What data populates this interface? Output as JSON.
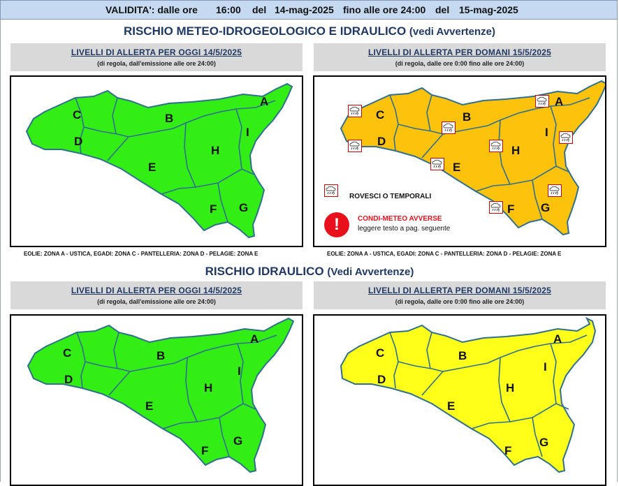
{
  "validity": {
    "label": "VALIDITA': dalle ore",
    "from_time": "16:00",
    "del1": "del",
    "from_date": "14-mag-2025",
    "until_label": "fino alle ore 24:00",
    "del2": "del",
    "to_date": "15-mag-2025"
  },
  "section1": {
    "title": "RISCHIO METEO-IDROGEOLOGICO E IDRAULICO",
    "subtitle": "(vedi Avvertenze)"
  },
  "section2": {
    "title": "RISCHIO IDRAULICO",
    "subtitle": "(Vedi Avvertenze)"
  },
  "panels": [
    {
      "heading": "LIVELLI DI ALLERTA PER OGGI 14/5/2025",
      "note": "(di regola, dall'emissione alle ore 24:00)",
      "fill": "#33ee14",
      "alert_level": "verde"
    },
    {
      "heading": "LIVELLI DI ALLERTA PER DOMANI 15/5/2025",
      "note": "(di regola, dalle ore 0:00 fino alle ore 24:00)",
      "fill": "#fcc20c",
      "alert_level": "arancione"
    },
    {
      "heading": "LIVELLI DI ALLERTA PER OGGI 14/5/2025",
      "note": "(di regola, dall'emissione alle ore 24:00)",
      "fill": "#33ee14",
      "alert_level": "verde"
    },
    {
      "heading": "LIVELLI DI ALLERTA PER DOMANI 15/5/2025",
      "note": "(di regola, dalle ore 0:00 fino alle ore 24:00)",
      "fill": "#ffff1a",
      "alert_level": "gialla"
    }
  ],
  "zones": {
    "A": "A",
    "B": "B",
    "C": "C",
    "D": "D",
    "E": "E",
    "F": "F",
    "G": "G",
    "H": "H",
    "I": "I"
  },
  "islands_note": "EOLIE: ZONA A - USTICA, EGADI: ZONA C - PANTELLERIA: ZONA D - PELAGIE: ZONA E",
  "legend": {
    "storms": "ROVESCI O TEMPORALI",
    "adverse_title": "CONDI-METEO AVVERSE",
    "adverse_sub": "leggere testo a pag. seguente",
    "adverse_symbol": "!"
  },
  "colors": {
    "green": "#33ee14",
    "orange": "#fcc20c",
    "yellow": "#ffff1a",
    "border": "#2f6f8f",
    "header_bg": "#c5d9f1",
    "title_blue": "#1f3864"
  }
}
